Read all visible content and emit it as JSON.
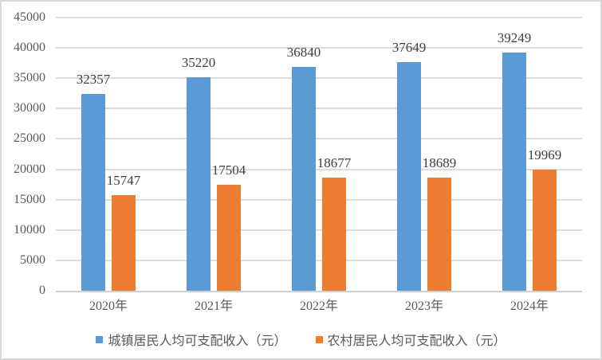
{
  "chart_data": {
    "type": "bar",
    "title": "",
    "xlabel": "",
    "ylabel": "",
    "categories": [
      "2020年",
      "2021年",
      "2022年",
      "2023年",
      "2024年"
    ],
    "series": [
      {
        "name": "城镇居民人均可支配收入（元）",
        "color": "#5B9BD5",
        "values": [
          32357,
          35220,
          36840,
          37649,
          39249
        ]
      },
      {
        "name": "农村居民人均可支配收入（元）",
        "color": "#ED7D31",
        "values": [
          15747,
          17504,
          18677,
          18689,
          19969
        ]
      }
    ],
    "ylim": [
      0,
      45000
    ],
    "yticks": [
      0,
      5000,
      10000,
      15000,
      20000,
      25000,
      30000,
      35000,
      40000,
      45000
    ],
    "grid": true,
    "legend_position": "bottom",
    "data_labels": "outside-end"
  },
  "colors": {
    "series_urban": "#5B9BD5",
    "series_rural": "#ED7D31",
    "gridline": "#DCDCDC",
    "axis_line": "#D0D0D0",
    "axis_text": "#595959",
    "data_label_text": "#404040",
    "chart_border": "#D9D9D9",
    "background": "#FFFFFF"
  }
}
